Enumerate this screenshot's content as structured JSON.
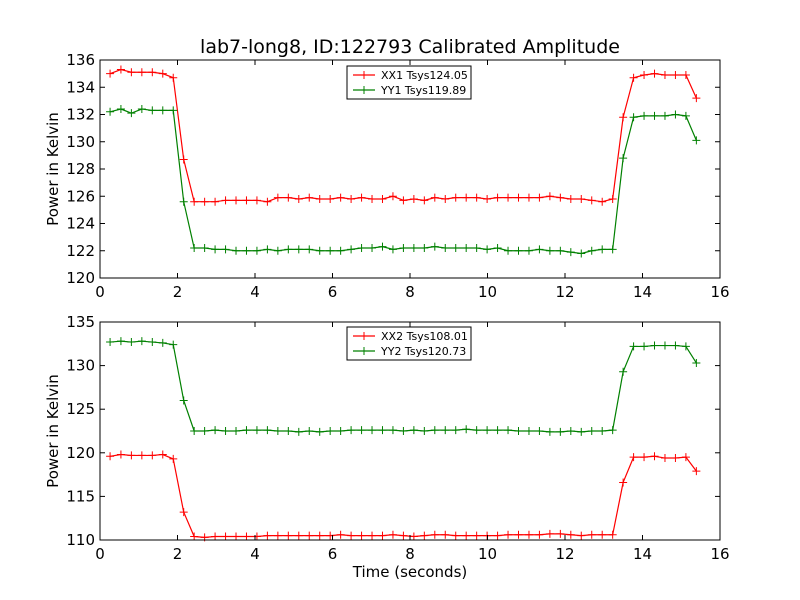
{
  "figure": {
    "title": "lab7-long8, ID:122793 Calibrated Amplitude"
  },
  "colors": {
    "xx": "#ff0000",
    "yy": "#008000"
  },
  "chart_data": [
    {
      "type": "line",
      "title": "lab7-long8, ID:122793 Calibrated Amplitude",
      "xlabel": "",
      "ylabel": "Power in Kelvin",
      "xlim": [
        0,
        16
      ],
      "ylim": [
        120,
        136
      ],
      "xticks": [
        0,
        2,
        4,
        6,
        8,
        10,
        12,
        14,
        16
      ],
      "yticks": [
        120,
        122,
        124,
        126,
        128,
        130,
        132,
        134,
        136
      ],
      "grid": false,
      "legend": "top-center",
      "x": [
        0.26,
        0.54,
        0.81,
        1.08,
        1.35,
        1.62,
        1.89,
        2.16,
        2.43,
        2.7,
        2.97,
        3.24,
        3.51,
        3.78,
        4.05,
        4.32,
        4.59,
        4.86,
        5.13,
        5.4,
        5.67,
        5.94,
        6.21,
        6.48,
        6.75,
        7.02,
        7.29,
        7.56,
        7.83,
        8.1,
        8.37,
        8.64,
        8.91,
        9.18,
        9.45,
        9.72,
        9.99,
        10.26,
        10.53,
        10.8,
        11.07,
        11.34,
        11.61,
        11.88,
        12.15,
        12.42,
        12.69,
        12.96,
        13.23,
        13.5,
        13.77,
        14.04,
        14.31,
        14.58,
        14.85,
        15.12,
        15.39
      ],
      "series": [
        {
          "name": "XX1 Tsys124.05",
          "color": "#ff0000",
          "values": [
            135.0,
            135.3,
            135.1,
            135.1,
            135.1,
            135.0,
            134.7,
            128.7,
            125.6,
            125.6,
            125.6,
            125.7,
            125.7,
            125.7,
            125.7,
            125.6,
            125.9,
            125.9,
            125.8,
            125.9,
            125.8,
            125.8,
            125.9,
            125.8,
            125.9,
            125.8,
            125.8,
            126.0,
            125.7,
            125.8,
            125.7,
            125.9,
            125.8,
            125.9,
            125.9,
            125.9,
            125.8,
            125.9,
            125.9,
            125.9,
            125.9,
            125.9,
            126.0,
            125.9,
            125.8,
            125.8,
            125.7,
            125.6,
            125.8,
            131.8,
            134.7,
            134.9,
            135.0,
            134.9,
            134.9,
            134.9,
            133.2
          ]
        },
        {
          "name": "YY1 Tsys119.89",
          "color": "#008000",
          "values": [
            132.2,
            132.4,
            132.1,
            132.4,
            132.3,
            132.3,
            132.3,
            125.6,
            122.2,
            122.2,
            122.1,
            122.1,
            122.0,
            122.0,
            122.0,
            122.1,
            122.0,
            122.1,
            122.1,
            122.1,
            122.0,
            122.0,
            122.0,
            122.1,
            122.2,
            122.2,
            122.3,
            122.1,
            122.2,
            122.2,
            122.2,
            122.3,
            122.2,
            122.2,
            122.2,
            122.2,
            122.1,
            122.2,
            122.0,
            122.0,
            122.0,
            122.1,
            122.0,
            122.0,
            121.9,
            121.8,
            122.0,
            122.1,
            122.1,
            128.8,
            131.8,
            131.9,
            131.9,
            131.9,
            132.0,
            131.9,
            130.1
          ]
        }
      ]
    },
    {
      "type": "line",
      "title": "",
      "xlabel": "Time (seconds)",
      "ylabel": "Power in Kelvin",
      "xlim": [
        0,
        16
      ],
      "ylim": [
        110,
        135
      ],
      "xticks": [
        0,
        2,
        4,
        6,
        8,
        10,
        12,
        14,
        16
      ],
      "yticks": [
        110,
        115,
        120,
        125,
        130,
        135
      ],
      "grid": false,
      "legend": "top-center",
      "x": [
        0.26,
        0.54,
        0.81,
        1.08,
        1.35,
        1.62,
        1.89,
        2.16,
        2.43,
        2.7,
        2.97,
        3.24,
        3.51,
        3.78,
        4.05,
        4.32,
        4.59,
        4.86,
        5.13,
        5.4,
        5.67,
        5.94,
        6.21,
        6.48,
        6.75,
        7.02,
        7.29,
        7.56,
        7.83,
        8.1,
        8.37,
        8.64,
        8.91,
        9.18,
        9.45,
        9.72,
        9.99,
        10.26,
        10.53,
        10.8,
        11.07,
        11.34,
        11.61,
        11.88,
        12.15,
        12.42,
        12.69,
        12.96,
        13.23,
        13.5,
        13.77,
        14.04,
        14.31,
        14.58,
        14.85,
        15.12,
        15.39
      ],
      "series": [
        {
          "name": "XX2 Tsys108.01",
          "color": "#ff0000",
          "values": [
            119.6,
            119.8,
            119.7,
            119.7,
            119.7,
            119.8,
            119.3,
            113.2,
            110.4,
            110.3,
            110.4,
            110.4,
            110.4,
            110.4,
            110.4,
            110.5,
            110.5,
            110.5,
            110.5,
            110.5,
            110.5,
            110.5,
            110.6,
            110.5,
            110.5,
            110.5,
            110.5,
            110.6,
            110.5,
            110.4,
            110.5,
            110.6,
            110.6,
            110.5,
            110.5,
            110.5,
            110.5,
            110.5,
            110.6,
            110.6,
            110.6,
            110.6,
            110.7,
            110.7,
            110.6,
            110.5,
            110.6,
            110.6,
            110.6,
            116.6,
            119.5,
            119.5,
            119.6,
            119.4,
            119.4,
            119.5,
            117.9
          ]
        },
        {
          "name": "YY2 Tsys120.73",
          "color": "#008000",
          "values": [
            132.7,
            132.8,
            132.7,
            132.8,
            132.7,
            132.6,
            132.4,
            126.0,
            122.5,
            122.5,
            122.6,
            122.5,
            122.5,
            122.6,
            122.6,
            122.6,
            122.5,
            122.5,
            122.4,
            122.5,
            122.4,
            122.5,
            122.5,
            122.6,
            122.6,
            122.6,
            122.6,
            122.6,
            122.5,
            122.6,
            122.5,
            122.6,
            122.6,
            122.6,
            122.7,
            122.6,
            122.6,
            122.6,
            122.6,
            122.5,
            122.5,
            122.5,
            122.4,
            122.4,
            122.5,
            122.4,
            122.5,
            122.5,
            122.6,
            129.3,
            132.2,
            132.2,
            132.3,
            132.3,
            132.3,
            132.2,
            130.3
          ]
        }
      ]
    }
  ]
}
